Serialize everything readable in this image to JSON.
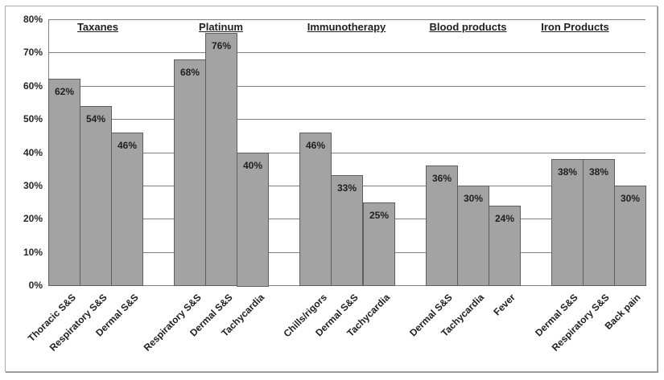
{
  "chart_data": {
    "type": "bar",
    "title": "",
    "xlabel": "",
    "ylabel": "",
    "ylim": [
      0,
      80
    ],
    "y_tick_labels": [
      "0%",
      "10%",
      "20%",
      "30%",
      "40%",
      "50%",
      "60%",
      "70%",
      "80%"
    ],
    "grid": true,
    "legend": null,
    "colors": {
      "bar_fill": "#a3a3a3",
      "bar_border": "#5f5f5f",
      "gridline": "#808080",
      "text": "#1f1f1f",
      "frame_border": "#ababab"
    },
    "groups": [
      {
        "label": "Taxanes",
        "bars": [
          {
            "category": "Thoracic S&S",
            "value": 62,
            "value_label": "62%"
          },
          {
            "category": "Respiratory S&S",
            "value": 54,
            "value_label": "54%"
          },
          {
            "category": "Dermal S&S",
            "value": 46,
            "value_label": "46%"
          }
        ]
      },
      {
        "label": "Platinum",
        "bars": [
          {
            "category": "Respiratory S&S",
            "value": 68,
            "value_label": "68%"
          },
          {
            "category": "Dermal S&S",
            "value": 76,
            "value_label": "76%"
          },
          {
            "category": "Tachycardia",
            "value": 40,
            "value_label": "40%"
          }
        ]
      },
      {
        "label": "Immunotherapy",
        "bars": [
          {
            "category": "Chills/rigors",
            "value": 46,
            "value_label": "46%"
          },
          {
            "category": "Dermal S&S",
            "value": 33,
            "value_label": "33%"
          },
          {
            "category": "Tachycardia",
            "value": 25,
            "value_label": "25%"
          }
        ]
      },
      {
        "label": "Blood products",
        "bars": [
          {
            "category": "Dermal S&S",
            "value": 36,
            "value_label": "36%"
          },
          {
            "category": "Tachycardia",
            "value": 30,
            "value_label": "30%"
          },
          {
            "category": "Fever",
            "value": 24,
            "value_label": "24%"
          }
        ]
      },
      {
        "label": "Iron Products",
        "bars": [
          {
            "category": "Dermal S&S",
            "value": 38,
            "value_label": "38%"
          },
          {
            "category": "Respiratory S&S",
            "value": 38,
            "value_label": "38%"
          },
          {
            "category": "Back pain",
            "value": 30,
            "value_label": "30%"
          }
        ]
      }
    ]
  }
}
